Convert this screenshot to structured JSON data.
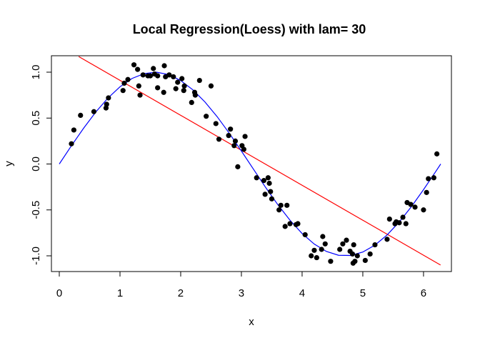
{
  "chart_data": {
    "type": "scatter",
    "title": "Local Regression(Loess) with lam= 30",
    "xlabel": "x",
    "ylabel": "y",
    "xlim": [
      0,
      6.2832
    ],
    "ylim": [
      -1.15,
      1.2
    ],
    "x_ticks": [
      0,
      1,
      2,
      3,
      4,
      5,
      6
    ],
    "x_tick_labels": [
      "0",
      "1",
      "2",
      "3",
      "4",
      "5",
      "6"
    ],
    "y_ticks": [
      -1.0,
      -0.5,
      0.0,
      0.5,
      1.0
    ],
    "y_tick_labels": [
      "-1.0",
      "-0.5",
      "0.0",
      "0.5",
      "1.0"
    ],
    "grid": false,
    "legend": "none",
    "colors": {
      "points": "#000000",
      "fit_curve": "#0000ff",
      "linear_line": "#ff0000",
      "frame": "#000000"
    },
    "series": [
      {
        "kind": "points",
        "x": [
          0.2,
          0.24,
          0.35,
          0.57,
          0.77,
          0.78,
          0.81,
          1.05,
          1.07,
          1.13,
          1.23,
          1.29,
          1.31,
          1.33,
          1.38,
          1.46,
          1.5,
          1.55,
          1.57,
          1.62,
          1.62,
          1.72,
          1.73,
          1.75,
          1.81,
          1.88,
          1.92,
          1.95,
          2.02,
          2.05,
          2.06,
          2.18,
          2.23,
          2.24,
          2.31,
          2.42,
          2.5,
          2.58,
          2.63,
          2.79,
          2.82,
          2.88,
          2.9,
          2.94,
          3.01,
          3.04,
          3.06,
          3.25,
          3.37,
          3.39,
          3.44,
          3.46,
          3.48,
          3.5,
          3.62,
          3.65,
          3.72,
          3.75,
          3.8,
          3.9,
          3.93,
          4.05,
          4.15,
          4.2,
          4.24,
          4.32,
          4.34,
          4.38,
          4.47,
          4.62,
          4.67,
          4.73,
          4.79,
          4.83,
          4.84,
          4.85,
          4.87,
          4.91,
          5.04,
          5.12,
          5.2,
          5.4,
          5.44,
          5.53,
          5.55,
          5.6,
          5.66,
          5.71,
          5.73,
          5.79,
          5.86,
          6.0,
          6.05,
          6.08,
          6.17,
          6.22
        ],
        "y": [
          0.22,
          0.37,
          0.53,
          0.57,
          0.61,
          0.65,
          0.72,
          0.8,
          0.88,
          0.92,
          1.08,
          1.03,
          0.85,
          0.75,
          0.97,
          0.96,
          0.96,
          1.04,
          0.98,
          0.96,
          0.83,
          0.78,
          1.07,
          0.95,
          0.97,
          0.95,
          0.82,
          0.89,
          0.93,
          0.8,
          0.85,
          0.67,
          0.78,
          0.75,
          0.91,
          0.52,
          0.85,
          0.44,
          0.27,
          0.31,
          0.38,
          0.2,
          0.25,
          -0.03,
          0.2,
          0.16,
          0.3,
          -0.15,
          -0.18,
          -0.33,
          -0.15,
          -0.21,
          -0.3,
          -0.38,
          -0.5,
          -0.45,
          -0.68,
          -0.45,
          -0.65,
          -0.66,
          -0.65,
          -0.77,
          -1.0,
          -0.94,
          -1.02,
          -0.93,
          -0.79,
          -0.87,
          -1.06,
          -0.93,
          -0.87,
          -0.83,
          -0.95,
          -0.98,
          -1.08,
          -0.88,
          -1.06,
          -1.0,
          -1.05,
          -0.98,
          -0.88,
          -0.82,
          -0.6,
          -0.65,
          -0.63,
          -0.64,
          -0.58,
          -0.65,
          -0.42,
          -0.44,
          -0.47,
          -0.5,
          -0.31,
          -0.16,
          -0.15,
          0.11
        ]
      },
      {
        "kind": "line",
        "x": [
          0.0,
          0.2,
          0.4,
          0.6,
          0.8,
          1.0,
          1.2,
          1.4,
          1.6,
          1.8,
          2.0,
          2.2,
          2.4,
          2.6,
          2.8,
          3.0,
          3.2,
          3.4,
          3.6,
          3.8,
          4.0,
          4.2,
          4.4,
          4.6,
          4.8,
          5.0,
          5.2,
          5.4,
          5.6,
          5.8,
          6.0,
          6.2,
          6.2832
        ],
        "y": [
          0.0,
          0.199,
          0.389,
          0.565,
          0.717,
          0.841,
          0.932,
          0.985,
          1.0,
          0.974,
          0.909,
          0.808,
          0.675,
          0.516,
          0.335,
          0.141,
          -0.058,
          -0.256,
          -0.443,
          -0.612,
          -0.757,
          -0.872,
          -0.952,
          -0.994,
          -0.996,
          -0.959,
          -0.883,
          -0.773,
          -0.631,
          -0.465,
          -0.279,
          -0.083,
          0.0
        ]
      },
      {
        "kind": "line",
        "x": [
          0.32,
          6.28
        ],
        "y": [
          1.17,
          -1.1
        ]
      }
    ]
  }
}
